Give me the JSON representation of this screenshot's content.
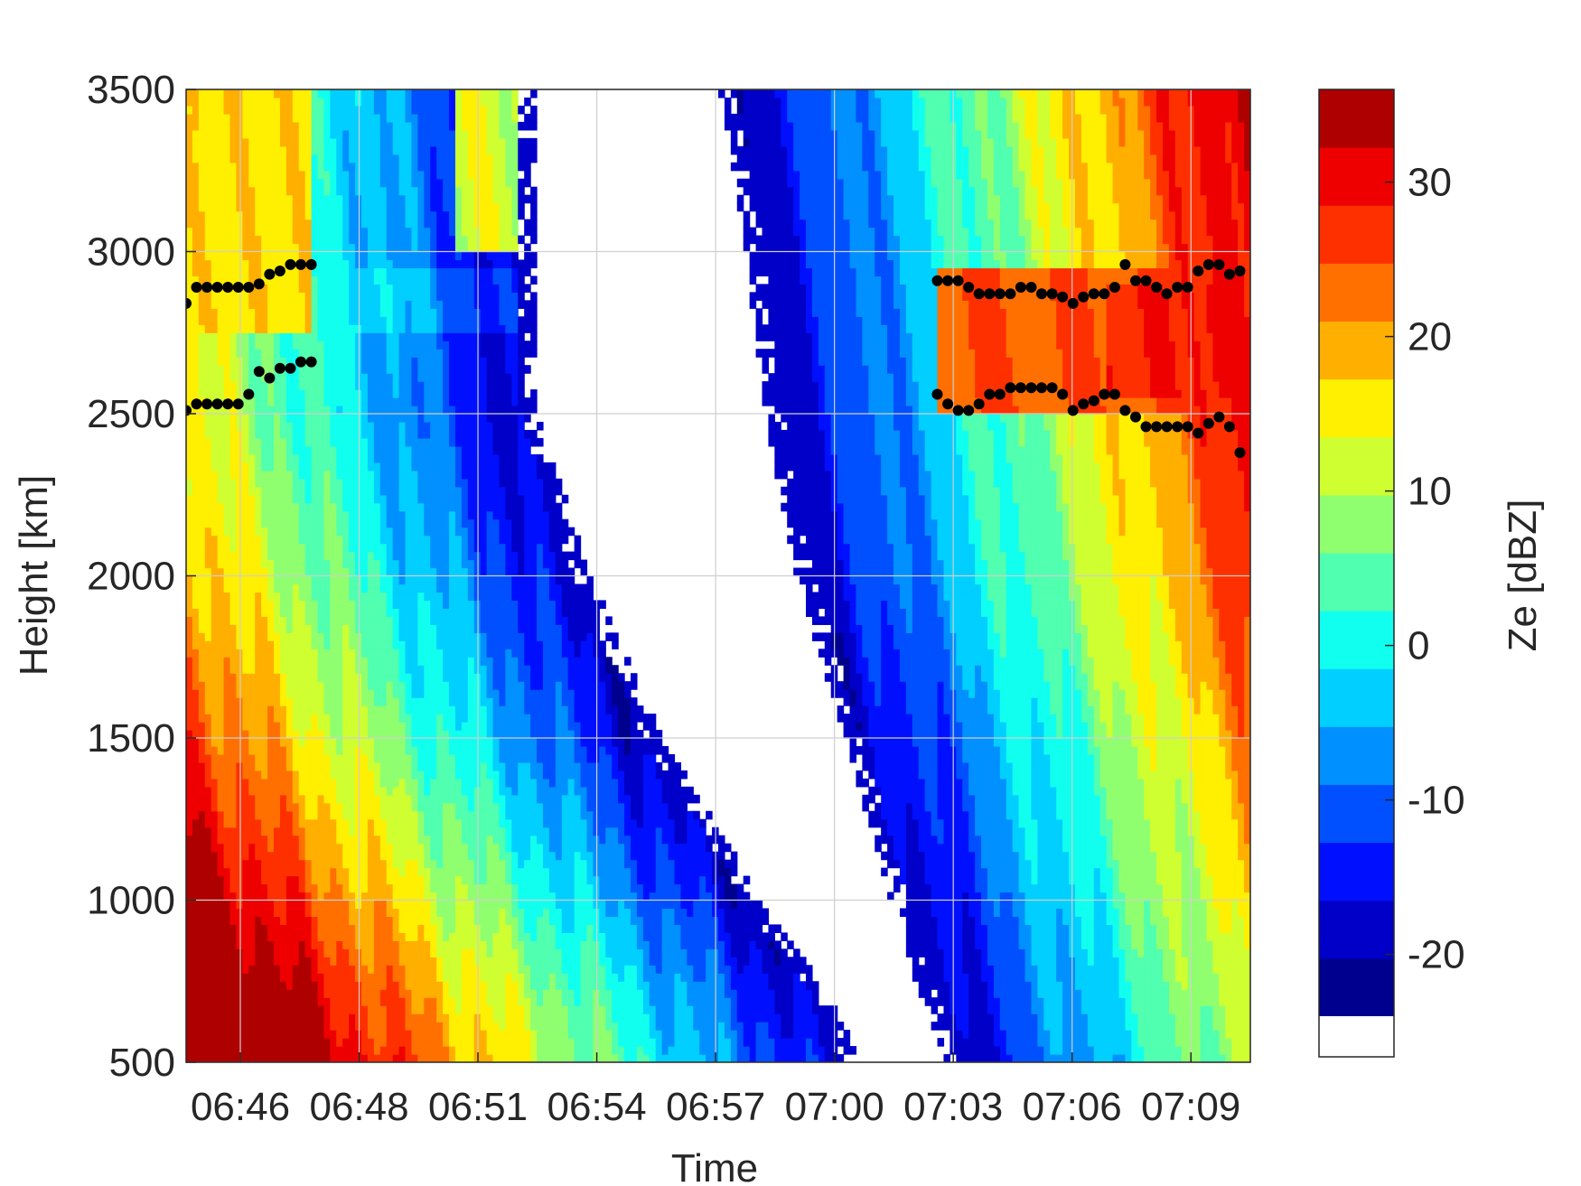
{
  "chart_data": {
    "type": "heatmap",
    "title": "",
    "xlabel": "Time",
    "ylabel": "Height [km]",
    "x_ticks": [
      "06:46",
      "06:48",
      "06:51",
      "06:54",
      "06:57",
      "07:00",
      "07:03",
      "07:06",
      "07:09"
    ],
    "x_range_minutes": [
      0,
      25.5
    ],
    "y_ticks": [
      "500",
      "1000",
      "1500",
      "2000",
      "2500",
      "3000",
      "3500"
    ],
    "y_range": [
      500,
      3500
    ],
    "grid": true,
    "colorbar": {
      "label": "Ze [dBZ]",
      "ticks": [
        "-20",
        "-10",
        "0",
        "10",
        "20",
        "30"
      ],
      "range": [
        -24,
        36
      ],
      "no_data_color": "#ffffff",
      "colormap": [
        "#00008f",
        "#0000c8",
        "#0010ff",
        "#0050ff",
        "#0090ff",
        "#00cfff",
        "#10ffef",
        "#50ffaf",
        "#90ff6f",
        "#cfff30",
        "#ffef00",
        "#ffaf00",
        "#ff7000",
        "#ff3000",
        "#ef0000",
        "#af0000"
      ]
    },
    "cloud_top_markers": {
      "color": "#000000",
      "left": [
        [
          0.0,
          2840
        ],
        [
          0.25,
          2890
        ],
        [
          0.5,
          2890
        ],
        [
          0.75,
          2890
        ],
        [
          1.0,
          2890
        ],
        [
          1.25,
          2890
        ],
        [
          1.5,
          2890
        ],
        [
          1.75,
          2900
        ],
        [
          2.0,
          2930
        ],
        [
          2.25,
          2940
        ],
        [
          2.5,
          2960
        ],
        [
          2.75,
          2960
        ],
        [
          3.0,
          2960
        ]
      ],
      "right": [
        [
          18.0,
          2910
        ],
        [
          18.25,
          2910
        ],
        [
          18.5,
          2910
        ],
        [
          18.75,
          2890
        ],
        [
          19.0,
          2870
        ],
        [
          19.25,
          2870
        ],
        [
          19.5,
          2870
        ],
        [
          19.75,
          2870
        ],
        [
          20.0,
          2890
        ],
        [
          20.25,
          2890
        ],
        [
          20.5,
          2870
        ],
        [
          20.75,
          2870
        ],
        [
          21.0,
          2860
        ],
        [
          21.25,
          2840
        ],
        [
          21.5,
          2860
        ],
        [
          21.75,
          2870
        ],
        [
          22.0,
          2870
        ],
        [
          22.25,
          2890
        ],
        [
          22.5,
          2960
        ],
        [
          22.75,
          2910
        ],
        [
          23.0,
          2910
        ],
        [
          23.25,
          2890
        ],
        [
          23.5,
          2870
        ],
        [
          23.75,
          2890
        ],
        [
          24.0,
          2890
        ],
        [
          24.25,
          2940
        ],
        [
          24.5,
          2960
        ],
        [
          24.75,
          2960
        ],
        [
          25.0,
          2930
        ],
        [
          25.25,
          2940
        ]
      ]
    },
    "cloud_base_markers": {
      "color": "#000000",
      "left": [
        [
          0.0,
          2510
        ],
        [
          0.25,
          2530
        ],
        [
          0.5,
          2530
        ],
        [
          0.75,
          2530
        ],
        [
          1.0,
          2530
        ],
        [
          1.25,
          2530
        ],
        [
          1.5,
          2560
        ],
        [
          1.75,
          2630
        ],
        [
          2.0,
          2610
        ],
        [
          2.25,
          2640
        ],
        [
          2.5,
          2640
        ],
        [
          2.75,
          2660
        ],
        [
          3.0,
          2660
        ]
      ],
      "right": [
        [
          18.0,
          2560
        ],
        [
          18.25,
          2530
        ],
        [
          18.5,
          2510
        ],
        [
          18.75,
          2510
        ],
        [
          19.0,
          2530
        ],
        [
          19.25,
          2560
        ],
        [
          19.5,
          2560
        ],
        [
          19.75,
          2580
        ],
        [
          20.0,
          2580
        ],
        [
          20.25,
          2580
        ],
        [
          20.5,
          2580
        ],
        [
          20.75,
          2580
        ],
        [
          21.0,
          2560
        ],
        [
          21.25,
          2510
        ],
        [
          21.5,
          2530
        ],
        [
          21.75,
          2540
        ],
        [
          22.0,
          2560
        ],
        [
          22.25,
          2560
        ],
        [
          22.5,
          2510
        ],
        [
          22.75,
          2490
        ],
        [
          23.0,
          2460
        ],
        [
          23.25,
          2460
        ],
        [
          23.5,
          2460
        ],
        [
          23.75,
          2460
        ],
        [
          24.0,
          2460
        ],
        [
          24.25,
          2440
        ],
        [
          24.5,
          2470
        ],
        [
          24.75,
          2490
        ],
        [
          25.0,
          2460
        ],
        [
          25.25,
          2380
        ]
      ]
    }
  }
}
